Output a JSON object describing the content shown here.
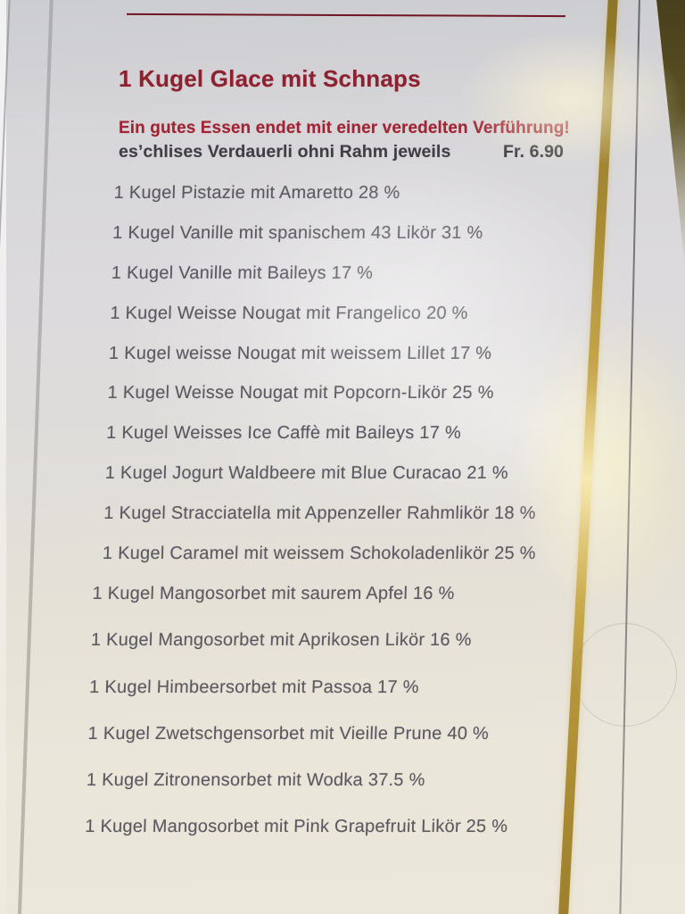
{
  "menu": {
    "title": "1 Kugel Glace mit Schnaps",
    "subtitle": "Ein gutes Essen endet mit einer veredelten Verführung!",
    "note": "es’chlises Verdauerli ohni Rahm jeweils",
    "price": "Fr. 6.90",
    "cream_items": [
      "1 Kugel Pistazie mit Amaretto 28 %",
      "1 Kugel Vanille mit spanischem 43 Likör 31 %",
      "1 Kugel Vanille mit Baileys 17 %",
      "1 Kugel Weisse Nougat mit Frangelico 20 %",
      "1 Kugel weisse Nougat mit weissem Lillet 17 %",
      "1 Kugel Weisse Nougat mit Popcorn-Likör 25 %",
      "1 Kugel Weisses Ice Caffè mit Baileys 17 %",
      "1 Kugel Jogurt Waldbeere mit Blue Curacao 21 %",
      "1 Kugel Stracciatella mit Appenzeller Rahmlikör 18 %",
      "1 Kugel Caramel mit weissem Schokoladenlikör 25 %"
    ],
    "sorbet_items": [
      "1 Kugel Mangosorbet mit saurem Apfel 16 %",
      "1 Kugel Mangosorbet mit Aprikosen Likör 16 %",
      "1 Kugel Himbeersorbet mit Passoa 17 %",
      "1 Kugel Zwetschgensorbet mit Vieille Prune 40 %",
      "1 Kugel Zitronensorbet mit Wodka 37.5 %",
      "1 Kugel Mangosorbet mit Pink Grapefruit Likör 25 %"
    ]
  },
  "colors": {
    "heading_red": "#8e2130",
    "subtitle_red": "#a02434",
    "rule_red": "#6f1622",
    "body_text": "#5b5960",
    "note_text": "#403e44",
    "gold_stripe": "#c9a94a",
    "page_top": "#cccdd1",
    "page_bottom": "#ebe7db",
    "corner_dark": "#483f1c"
  }
}
